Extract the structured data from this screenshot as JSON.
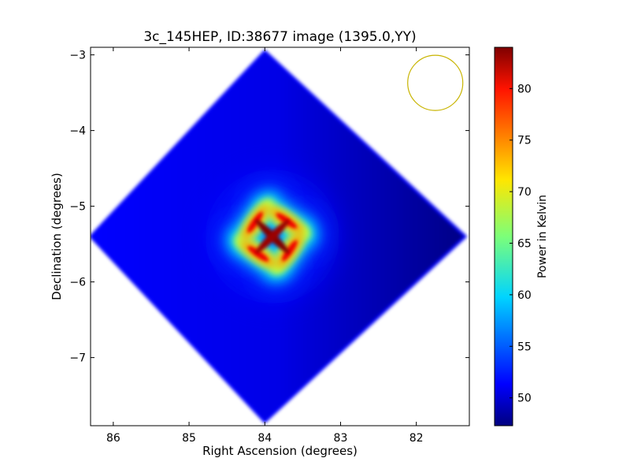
{
  "chart_data": {
    "type": "heatmap",
    "title": "3c_145HEP, ID:38677 image (1395.0,YY)",
    "xlabel": "Right Ascension (degrees)",
    "ylabel": "Declination (degrees)",
    "x_inverted": true,
    "xlim": [
      86.3,
      81.3
    ],
    "ylim": [
      -7.9,
      -2.9
    ],
    "xticks": [
      86,
      85,
      84,
      83,
      82
    ],
    "yticks": [
      -3,
      -4,
      -5,
      -6,
      -7
    ],
    "colorbar": {
      "label": "Power in Kelvin",
      "colormap": "jet",
      "range": [
        47.3,
        84.0
      ],
      "ticks": [
        50,
        55,
        60,
        65,
        70,
        75,
        80
      ]
    },
    "field": {
      "shape": "diamond",
      "center": [
        83.9,
        -5.4
      ],
      "corners": [
        [
          84.0,
          -2.95
        ],
        [
          81.35,
          -5.4
        ],
        [
          84.0,
          -7.85
        ],
        [
          86.3,
          -5.4
        ]
      ],
      "background_range": [
        47.5,
        52.0
      ]
    },
    "source": {
      "center": [
        83.9,
        -5.4
      ],
      "peak_value": 84.0,
      "pattern": "four-lobe pinwheel"
    },
    "beam_marker": {
      "center": [
        81.75,
        -3.37
      ],
      "color": "#c8b400"
    },
    "grid": false
  }
}
